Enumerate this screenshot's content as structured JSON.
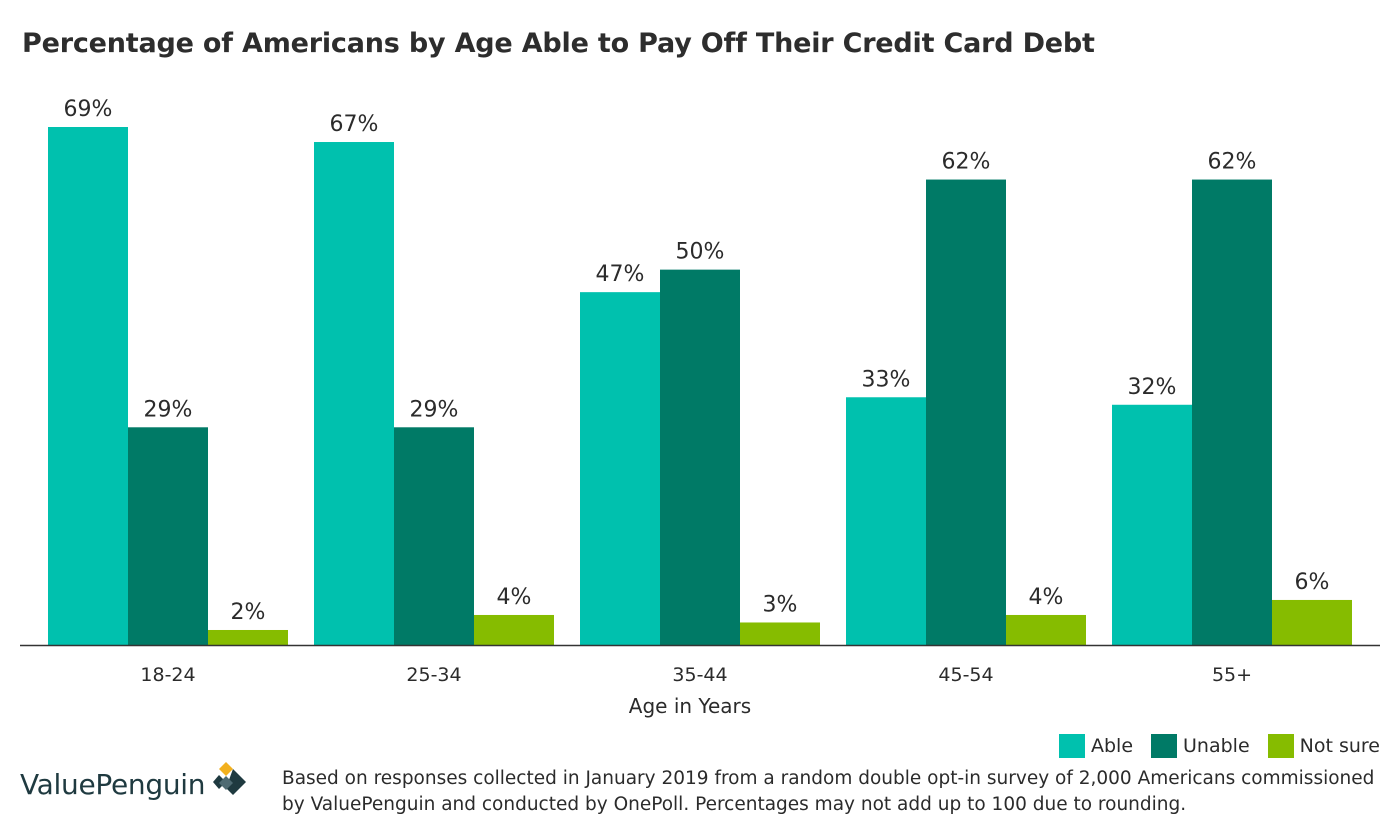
{
  "title": "Percentage of Americans by Age Able to Pay Off Their Credit Card Debt",
  "colors": {
    "able": "#00c1ae",
    "unable": "#007a66",
    "not_sure": "#86bc00",
    "axis": "#333333",
    "text": "#2b2b2b"
  },
  "legend": {
    "able": "Able",
    "unable": "Unable",
    "not_sure": "Not sure"
  },
  "footer": {
    "brand": "ValuePenguin",
    "brand_logo_icon": "valuepenguin-logo-icon",
    "note": "Based on responses collected in January 2019 from a random double opt-in survey of 2,000 Americans commissioned by ValuePenguin and conducted by OnePoll. Percentages may not add up to 100 due to rounding."
  },
  "chart_data": {
    "type": "bar",
    "title": "Percentage of Americans by Age Able to Pay Off Their Credit Card Debt",
    "xlabel": "Age in Years",
    "ylabel": "",
    "ylim": [
      0,
      69
    ],
    "grid": false,
    "legend_position": "bottom-right",
    "categories": [
      "18-24",
      "25-34",
      "35-44",
      "45-54",
      "55+"
    ],
    "series": [
      {
        "name": "Able",
        "color": "#00c1ae",
        "values": [
          69,
          67,
          47,
          33,
          32
        ],
        "labels": [
          "69%",
          "67%",
          "47%",
          "33%",
          "32%"
        ]
      },
      {
        "name": "Unable",
        "color": "#007a66",
        "values": [
          29,
          29,
          50,
          62,
          62
        ],
        "labels": [
          "29%",
          "29%",
          "50%",
          "62%",
          "62%"
        ]
      },
      {
        "name": "Not sure",
        "color": "#86bc00",
        "values": [
          2,
          4,
          3,
          4,
          6
        ],
        "labels": [
          "2%",
          "4%",
          "3%",
          "4%",
          "6%"
        ]
      }
    ]
  }
}
